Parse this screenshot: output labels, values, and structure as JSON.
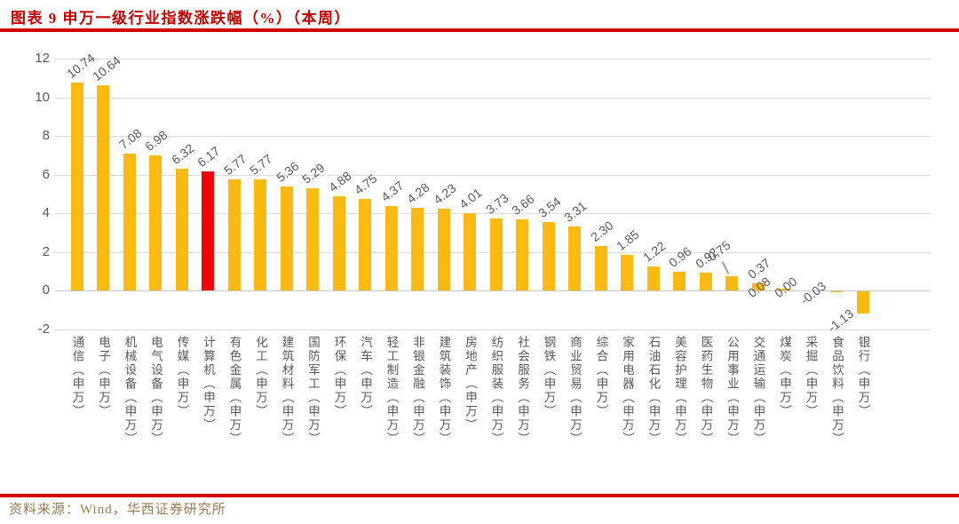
{
  "header": {
    "title": "图表 9 申万一级行业指数涨跌幅（%）（本周）"
  },
  "footer": {
    "source": "资料来源：Wind，华西证券研究所"
  },
  "colors": {
    "title_red": "#C00000",
    "rule_red": "#D40000",
    "bar": "#FBB913",
    "highlight": "#EE0505",
    "grid": "#DCDCDC",
    "zero_line": "#C6C6C6",
    "axis_text": "#595959",
    "source_text": "#9B7B4D"
  },
  "chart_data": {
    "type": "bar",
    "title": "申万一级行业指数涨跌幅（%）（本周）",
    "categories": [
      "通信（申万）",
      "电子（申万）",
      "机械设备（申万）",
      "电气设备（申万）",
      "传媒（申万）",
      "计算机（申万）",
      "有色金属（申万）",
      "化工（申万）",
      "建筑材料（申万）",
      "国防军工（申万）",
      "环保（申万）",
      "汽车（申万）",
      "轻工制造（申万）",
      "非银金融（申万）",
      "建筑装饰（申万）",
      "房地产（申万）",
      "纺织服装（申万）",
      "社会服务（申万）",
      "钢铁（申万）",
      "商业贸易（申万）",
      "综合（申万）",
      "家用电器（申万）",
      "石油石化（申万）",
      "美容护理（申万）",
      "医药生物（申万）",
      "公用事业（申万）",
      "交通运输（申万）",
      "煤炭（申万）",
      "采掘（申万）",
      "食品饮料（申万）",
      "银行（申万）"
    ],
    "values": [
      10.74,
      10.64,
      7.08,
      6.98,
      6.32,
      6.17,
      5.77,
      5.77,
      5.36,
      5.29,
      4.88,
      4.75,
      4.37,
      4.28,
      4.23,
      4.01,
      3.73,
      3.66,
      3.54,
      3.31,
      2.3,
      1.85,
      1.22,
      0.96,
      0.92,
      0.75,
      0.37,
      0.08,
      0.0,
      -0.03,
      -1.13
    ],
    "highlight_category": "计算机（申万）",
    "highlight_index": 5,
    "ylim": [
      -2,
      12
    ],
    "yticks": [
      12,
      10,
      8,
      6,
      4,
      2,
      0,
      -2
    ],
    "grid": true,
    "legend": false,
    "xlabel": "",
    "ylabel": ""
  }
}
